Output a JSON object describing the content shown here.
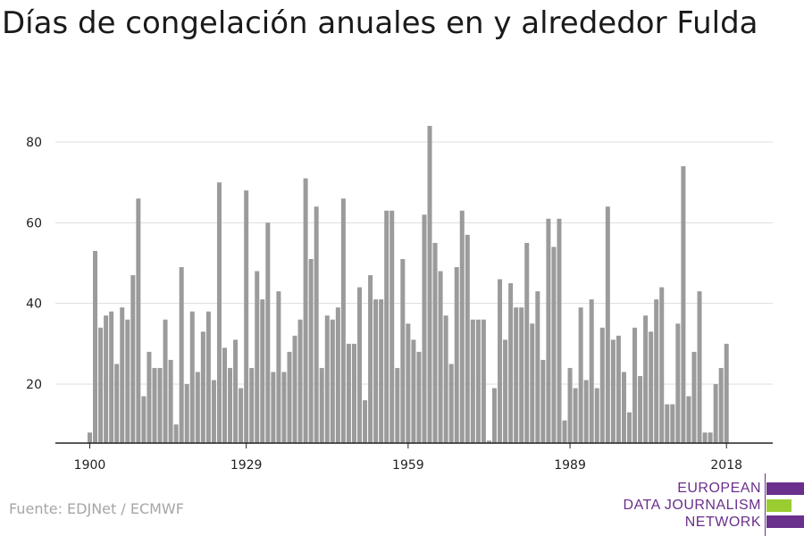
{
  "title": "Días de congelación anuales en y alrededor Fulda",
  "source": "Fuente: EDJNet / ECMWF",
  "logo": {
    "line1": "EUROPEAN",
    "line2": "DATA JOURNALISM",
    "line3": "NETWORK",
    "colors": {
      "purple": "#6b2f8c",
      "green": "#9acd32"
    }
  },
  "colors": {
    "bar": "#9b9b9b",
    "grid": "#dddddd",
    "axis": "#222222",
    "tick_text": "#222222"
  },
  "chart_data": {
    "type": "bar",
    "title": "Días de congelación anuales en y alrededor Fulda",
    "xlabel": "",
    "ylabel": "",
    "x_start": 1900,
    "x_end": 2021,
    "x_ticks": [
      1900,
      1929,
      1959,
      1989,
      2018
    ],
    "y_ticks": [
      20,
      40,
      60,
      80
    ],
    "ylim": [
      5,
      87
    ],
    "grid": true,
    "values": [
      8,
      53,
      34,
      37,
      38,
      25,
      39,
      36,
      47,
      66,
      17,
      28,
      24,
      24,
      36,
      26,
      10,
      49,
      20,
      38,
      23,
      33,
      38,
      21,
      70,
      29,
      24,
      31,
      19,
      68,
      24,
      48,
      41,
      60,
      23,
      43,
      23,
      28,
      32,
      36,
      71,
      51,
      64,
      24,
      37,
      36,
      39,
      66,
      30,
      30,
      44,
      16,
      47,
      41,
      41,
      63,
      63,
      24,
      51,
      35,
      31,
      28,
      62,
      84,
      55,
      48,
      37,
      25,
      49,
      63,
      57,
      36,
      36,
      36,
      6,
      19,
      46,
      31,
      45,
      39,
      39,
      55,
      35,
      43,
      26,
      61,
      54,
      61,
      11,
      24,
      19,
      39,
      21,
      41,
      19,
      34,
      64,
      31,
      32,
      23,
      13,
      34,
      22,
      37,
      33,
      41,
      44,
      15,
      15,
      35,
      74,
      17,
      28,
      43,
      8,
      8,
      20,
      24,
      30
    ]
  }
}
